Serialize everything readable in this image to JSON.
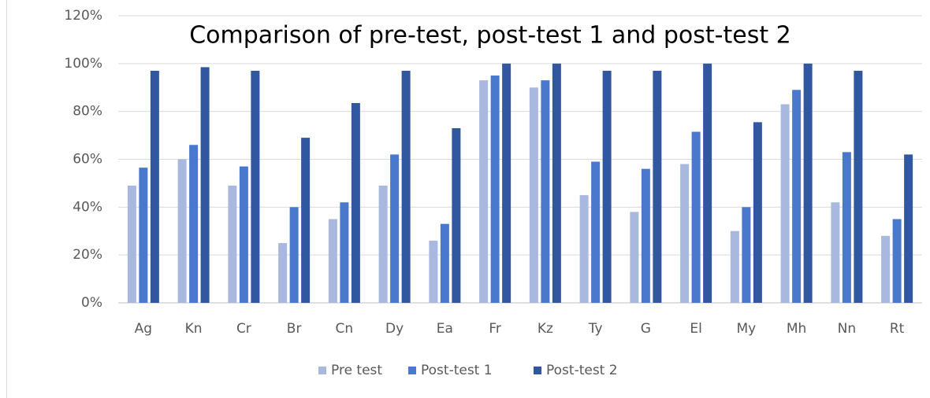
{
  "chart_data": {
    "type": "bar",
    "title": "Comparison of pre-test, post-test 1 and post-test 2",
    "categories": [
      "Ag",
      "Kn",
      "Cr",
      "Br",
      "Cn",
      "Dy",
      "Ea",
      "Fr",
      "Kz",
      "Ty",
      "G",
      "El",
      "My",
      "Mh",
      "Nn",
      "Rt"
    ],
    "series": [
      {
        "name": "Pre test",
        "color": "#a9b8de",
        "values": [
          49,
          60,
          49,
          25,
          35,
          49,
          26,
          93,
          90,
          45,
          38,
          58,
          30,
          83,
          42,
          28
        ]
      },
      {
        "name": "Post-test 1",
        "color": "#4a78cc",
        "values": [
          56.5,
          66,
          57,
          40,
          42,
          62,
          33,
          95,
          93,
          59,
          56,
          71.5,
          40,
          89,
          63,
          35
        ]
      },
      {
        "name": "Post-test 2",
        "color": "#30579f",
        "values": [
          97,
          98.5,
          97,
          69,
          83.5,
          97,
          73,
          100,
          100,
          97,
          97,
          100,
          75.5,
          100,
          97,
          62
        ]
      }
    ],
    "ylim": [
      0,
      120
    ],
    "yticks": [
      {
        "value": 0,
        "label": "0%"
      },
      {
        "value": 20,
        "label": "20%"
      },
      {
        "value": 40,
        "label": "40%"
      },
      {
        "value": 60,
        "label": "60%"
      },
      {
        "value": 80,
        "label": "80%"
      },
      {
        "value": 100,
        "label": "100%"
      },
      {
        "value": 120,
        "label": "120%"
      }
    ],
    "grid": true,
    "legend": "bottom"
  }
}
